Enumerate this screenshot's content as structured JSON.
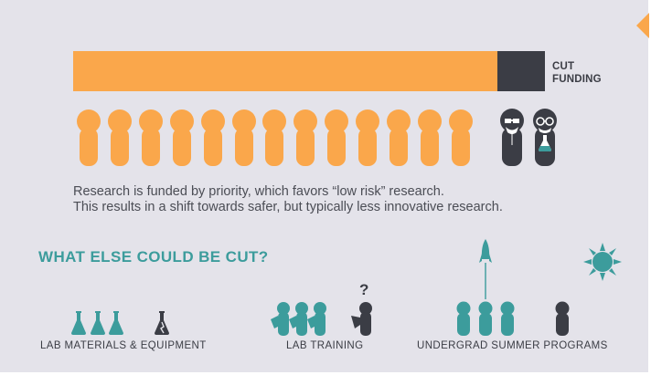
{
  "colors": {
    "background": "#e4e3ea",
    "orange": "#faa74b",
    "dark": "#3b3d45",
    "teal": "#3c9c9c",
    "text": "#4b4d55",
    "white": "#ffffff"
  },
  "funding": {
    "cut_label_line1": "CUT",
    "cut_label_line2": "FUNDING",
    "funded_fraction": 0.9
  },
  "people": {
    "funded_count": 13,
    "cut_count": 2
  },
  "description": {
    "line1": "Research is funded by priority, which favors “low risk” research.",
    "line2": "This results in a shift towards safer, but typically less innovative research."
  },
  "question": {
    "heading": "WHAT ELSE COULD BE CUT?"
  },
  "categories": [
    {
      "label": "LAB MATERIALS & EQUIPMENT",
      "icon": "flask-icon"
    },
    {
      "label": "LAB TRAINING",
      "icon": "trainee-icon"
    },
    {
      "label": "UNDERGRAD SUMMER PROGRAMS",
      "icon": "student-icon"
    }
  ],
  "decorations": {
    "question_mark": "?",
    "rocket": "rocket-icon",
    "sun": "sun-icon",
    "corner_arrow": "arrow-left-icon"
  }
}
